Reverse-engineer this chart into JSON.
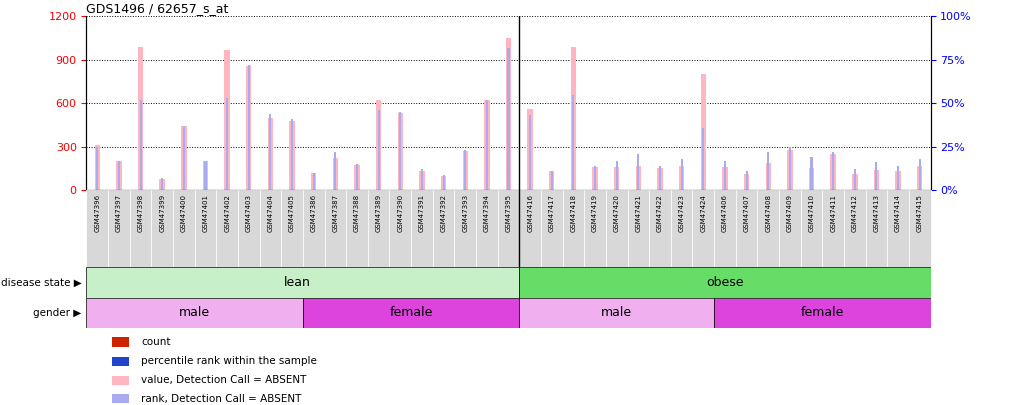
{
  "title": "GDS1496 / 62657_s_at",
  "samples": [
    "GSM47396",
    "GSM47397",
    "GSM47398",
    "GSM47399",
    "GSM47400",
    "GSM47401",
    "GSM47402",
    "GSM47403",
    "GSM47404",
    "GSM47405",
    "GSM47386",
    "GSM47387",
    "GSM47388",
    "GSM47389",
    "GSM47390",
    "GSM47391",
    "GSM47392",
    "GSM47393",
    "GSM47394",
    "GSM47395",
    "GSM47416",
    "GSM47417",
    "GSM47418",
    "GSM47419",
    "GSM47420",
    "GSM47421",
    "GSM47422",
    "GSM47423",
    "GSM47424",
    "GSM47406",
    "GSM47407",
    "GSM47408",
    "GSM47409",
    "GSM47410",
    "GSM47411",
    "GSM47412",
    "GSM47413",
    "GSM47414",
    "GSM47415"
  ],
  "values": [
    310,
    200,
    990,
    80,
    440,
    200,
    970,
    860,
    500,
    480,
    120,
    220,
    175,
    620,
    530,
    130,
    100,
    270,
    620,
    1050,
    560,
    130,
    990,
    160,
    160,
    170,
    155,
    165,
    800,
    160,
    115,
    190,
    280,
    155,
    250,
    115,
    140,
    130,
    170
  ],
  "ranks": [
    25,
    17,
    52,
    7,
    37,
    17,
    53,
    72,
    44,
    41,
    10,
    22,
    15,
    46,
    45,
    12,
    9,
    23,
    52,
    82,
    43,
    11,
    55,
    14,
    17,
    21,
    14,
    18,
    36,
    17,
    11,
    22,
    25,
    19,
    22,
    12,
    16,
    14,
    18
  ],
  "lean_count": 20,
  "obese_count": 19,
  "lean_male_count": 10,
  "lean_female_count": 10,
  "obese_male_count": 9,
  "obese_female_count": 10,
  "lean_color": "#c8f0c8",
  "obese_color": "#66dd66",
  "male_color": "#f0b0f0",
  "female_color": "#dd44dd",
  "bar_color": "#ffb6c1",
  "rank_color": "#aaaaee",
  "ylim_left": [
    0,
    1200
  ],
  "ylim_right": [
    0,
    100
  ],
  "yticks_left": [
    0,
    300,
    600,
    900,
    1200
  ],
  "yticks_right": [
    0,
    25,
    50,
    75,
    100
  ],
  "left_tick_labels": [
    "0",
    "300",
    "600",
    "900",
    "1200"
  ],
  "right_tick_labels": [
    "0%",
    "25%",
    "50%",
    "75%",
    "100%"
  ],
  "legend_items": [
    {
      "label": "count",
      "color": "#cc2200"
    },
    {
      "label": "percentile rank within the sample",
      "color": "#2244cc"
    },
    {
      "label": "value, Detection Call = ABSENT",
      "color": "#ffb6c1"
    },
    {
      "label": "rank, Detection Call = ABSENT",
      "color": "#aaaaee"
    }
  ]
}
